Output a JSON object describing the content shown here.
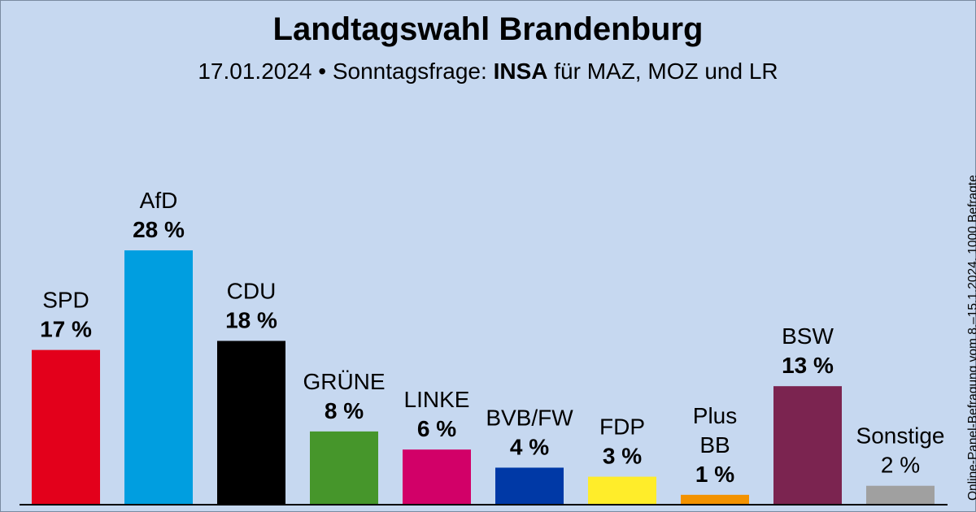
{
  "header": {
    "title": "Landtagswahl Brandenburg",
    "subtitle_prefix": "17.01.2024 • Sonntagsfrage: ",
    "subtitle_institute": "INSA",
    "subtitle_suffix": " für MAZ, MOZ und LR"
  },
  "side_note": "Online-Panel-Befragung vom 8.–15.1.2024, 1000 Befragte",
  "chart_data": {
    "type": "bar",
    "categories": [
      "SPD",
      "AfD",
      "CDU",
      "GRÜNE",
      "LINKE",
      "BVB/FW",
      "FDP",
      "Plus BB",
      "BSW",
      "Sonstige"
    ],
    "labels": [
      [
        "SPD"
      ],
      [
        "AfD"
      ],
      [
        "CDU"
      ],
      [
        "GRÜNE"
      ],
      [
        "LINKE"
      ],
      [
        "BVB/FW"
      ],
      [
        "FDP"
      ],
      [
        "Plus",
        "BB"
      ],
      [
        "BSW"
      ],
      [
        "Sonstige"
      ]
    ],
    "values": [
      17,
      28,
      18,
      8,
      6,
      4,
      3,
      1,
      13,
      2
    ],
    "value_labels": [
      "17 %",
      "28 %",
      "18 %",
      "8 %",
      "6 %",
      "4 %",
      "3 %",
      "1 %",
      "13 %",
      "2 %"
    ],
    "bold_value": [
      true,
      true,
      true,
      true,
      true,
      true,
      true,
      true,
      true,
      false
    ],
    "colors": [
      "#e3001b",
      "#009ee0",
      "#000000",
      "#46962b",
      "#d20068",
      "#0039a6",
      "#ffed2a",
      "#f39200",
      "#7b2450",
      "#a0a0a0"
    ],
    "unit": "%",
    "ylim": [
      0,
      28
    ],
    "grid": false,
    "legend": "none"
  }
}
